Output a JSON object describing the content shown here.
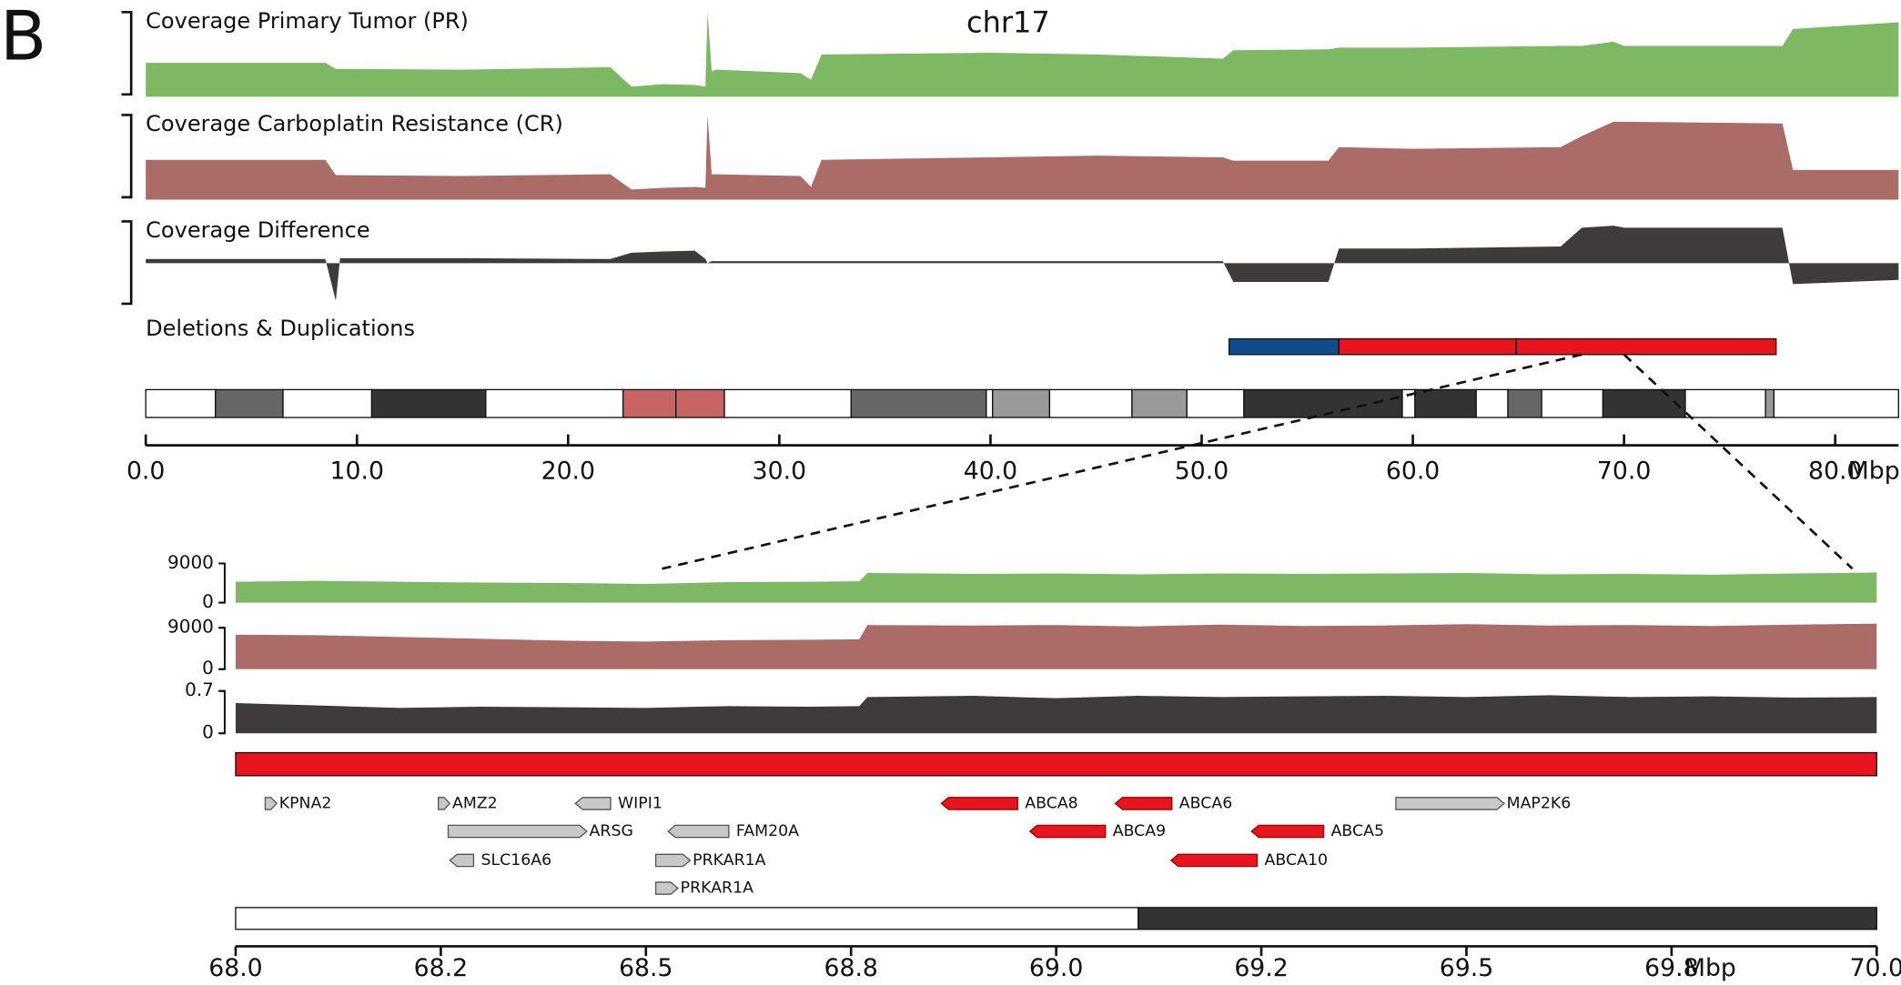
{
  "panel_label": "B",
  "chromosome": "chr17",
  "overview": {
    "x": [
      0,
      8.5,
      9,
      9.2,
      15,
      22,
      23,
      24.5,
      26,
      26.5,
      26.6,
      26.8,
      27,
      31,
      31.5,
      32,
      40,
      45,
      51,
      51.5,
      56,
      56.5,
      60,
      67,
      68,
      69.5,
      70,
      77.5,
      78,
      83
    ],
    "xlim": [
      0,
      83
    ],
    "xticks": [
      {
        "value": 0,
        "label": "0.0"
      },
      {
        "value": 10,
        "label": "10.0"
      },
      {
        "value": 20,
        "label": "20.0"
      },
      {
        "value": 30,
        "label": "30.0"
      },
      {
        "value": 40,
        "label": "40.0"
      },
      {
        "value": 50,
        "label": "50.0"
      },
      {
        "value": 60,
        "label": "60.0"
      },
      {
        "value": 70,
        "label": "70.0"
      },
      {
        "value": 80,
        "label": "80.0"
      }
    ],
    "unit": "Mbp",
    "tracks": [
      {
        "name": "Coverage Primary Tumor (PR)",
        "color": "#7db863",
        "ylim": [
          0,
          100
        ],
        "values": [
          40,
          40,
          33,
          33,
          32,
          35,
          12,
          15,
          14,
          12,
          100,
          30,
          32,
          28,
          20,
          50,
          52,
          50,
          45,
          55,
          56,
          58,
          58,
          60,
          60,
          65,
          60,
          60,
          80,
          88
        ]
      },
      {
        "name": "Coverage Carboplatin Resistance (CR)",
        "color": "#ab6b66",
        "ylim": [
          0,
          100
        ],
        "values": [
          47,
          47,
          29,
          29,
          28,
          30,
          12,
          14,
          15,
          14,
          100,
          30,
          30,
          28,
          15,
          47,
          50,
          52,
          50,
          46,
          46,
          62,
          60,
          62,
          75,
          92,
          92,
          90,
          35,
          35
        ]
      },
      {
        "name": "Coverage Difference",
        "color": "#403b3b",
        "ylim": [
          -1,
          1
        ],
        "values": [
          0.1,
          0.1,
          -0.9,
          0.12,
          0.12,
          0.1,
          0.25,
          0.28,
          0.3,
          0.1,
          0,
          0.05,
          0.05,
          0.05,
          0.05,
          0.05,
          0.05,
          0.05,
          0.05,
          -0.45,
          -0.45,
          0.35,
          0.35,
          0.4,
          0.85,
          0.9,
          0.85,
          0.85,
          -0.5,
          -0.4
        ]
      }
    ],
    "cnv_title": "Deletions & Duplications",
    "cnv": [
      {
        "start": 51.3,
        "end": 56.5,
        "color": "#0f4c8a"
      },
      {
        "start": 56.5,
        "end": 64.9,
        "color": "#e8141e"
      },
      {
        "start": 64.9,
        "end": 77.2,
        "color": "#e8141e"
      }
    ],
    "bands": [
      {
        "start": 0,
        "end": 3.3,
        "color": "#ffffff"
      },
      {
        "start": 3.3,
        "end": 6.5,
        "color": "#666666"
      },
      {
        "start": 6.5,
        "end": 10.7,
        "color": "#ffffff"
      },
      {
        "start": 10.7,
        "end": 16.1,
        "color": "#333333"
      },
      {
        "start": 16.1,
        "end": 22.6,
        "color": "#ffffff"
      },
      {
        "start": 22.6,
        "end": 25.1,
        "color": "#c86464"
      },
      {
        "start": 25.1,
        "end": 27.4,
        "color": "#c86464"
      },
      {
        "start": 27.4,
        "end": 33.4,
        "color": "#ffffff"
      },
      {
        "start": 33.4,
        "end": 39.8,
        "color": "#666666"
      },
      {
        "start": 39.8,
        "end": 40.1,
        "color": "#ffffff"
      },
      {
        "start": 40.1,
        "end": 42.8,
        "color": "#999999"
      },
      {
        "start": 42.8,
        "end": 46.7,
        "color": "#ffffff"
      },
      {
        "start": 46.7,
        "end": 49.3,
        "color": "#999999"
      },
      {
        "start": 49.3,
        "end": 52,
        "color": "#ffffff"
      },
      {
        "start": 52,
        "end": 59.5,
        "color": "#333333"
      },
      {
        "start": 59.5,
        "end": 60.1,
        "color": "#ffffff"
      },
      {
        "start": 60.1,
        "end": 63,
        "color": "#333333"
      },
      {
        "start": 63,
        "end": 64.5,
        "color": "#ffffff"
      },
      {
        "start": 64.5,
        "end": 66.1,
        "color": "#666666"
      },
      {
        "start": 66.1,
        "end": 69,
        "color": "#ffffff"
      },
      {
        "start": 69,
        "end": 72.9,
        "color": "#333333"
      },
      {
        "start": 72.9,
        "end": 76.7,
        "color": "#ffffff"
      },
      {
        "start": 76.7,
        "end": 77.1,
        "color": "#999999"
      },
      {
        "start": 77.1,
        "end": 83,
        "color": "#ffffff"
      }
    ],
    "zoom": [
      68,
      70
    ]
  },
  "detail": {
    "x": [
      68.0,
      68.1,
      68.2,
      68.3,
      68.4,
      68.5,
      68.6,
      68.7,
      68.76,
      68.77,
      68.9,
      69.0,
      69.1,
      69.2,
      69.3,
      69.4,
      69.5,
      69.6,
      69.7,
      69.8,
      69.9,
      70.0
    ],
    "xlim": [
      68,
      70
    ],
    "xticks": [
      {
        "value": 68,
        "label": "68.0"
      },
      {
        "value": 68.25,
        "label": "68.2"
      },
      {
        "value": 68.5,
        "label": "68.5"
      },
      {
        "value": 68.75,
        "label": "68.8"
      },
      {
        "value": 69,
        "label": "69.0"
      },
      {
        "value": 69.25,
        "label": "69.2"
      },
      {
        "value": 69.5,
        "label": "69.5"
      },
      {
        "value": 69.75,
        "label": "69.8"
      },
      {
        "value": 70,
        "label": "70.0"
      }
    ],
    "unit": "Mbp",
    "tracks": [
      {
        "color": "#7db863",
        "ylim": [
          0,
          10000
        ],
        "yticks": [
          0,
          9000
        ],
        "values": [
          4800,
          5000,
          4800,
          4600,
          4500,
          4300,
          4700,
          4800,
          4900,
          6800,
          6600,
          6700,
          6500,
          6700,
          6600,
          6700,
          6800,
          6500,
          6600,
          6400,
          6700,
          6900
        ]
      },
      {
        "color": "#ab6b66",
        "ylim": [
          0,
          10000
        ],
        "yticks": [
          0,
          9000
        ],
        "values": [
          7500,
          7400,
          7000,
          6600,
          6200,
          6000,
          6300,
          6400,
          6500,
          9600,
          9500,
          9600,
          9300,
          9700,
          9400,
          9500,
          9800,
          9500,
          9600,
          9400,
          9700,
          9900
        ]
      },
      {
        "color": "#403b3b",
        "ylim": [
          0,
          0.8
        ],
        "yticks": [
          0,
          0.7
        ],
        "values": [
          0.5,
          0.46,
          0.42,
          0.44,
          0.43,
          0.42,
          0.45,
          0.44,
          0.45,
          0.6,
          0.62,
          0.58,
          0.62,
          0.6,
          0.61,
          0.62,
          0.6,
          0.63,
          0.6,
          0.61,
          0.59,
          0.6
        ]
      }
    ],
    "cnv": [
      {
        "start": 68,
        "end": 70,
        "color": "#e8141e"
      }
    ],
    "gene_rows": [
      [
        {
          "name": "KPNA2",
          "start": 68.036,
          "end": 68.05,
          "strand": "+",
          "color": "#c8c8c8"
        },
        {
          "name": "AMZ2",
          "start": 68.247,
          "end": 68.261,
          "strand": "+",
          "color": "#c8c8c8"
        },
        {
          "name": "WIPI1",
          "start": 68.414,
          "end": 68.457,
          "strand": "-",
          "color": "#c8c8c8"
        },
        {
          "name": "ABCA8",
          "start": 68.86,
          "end": 68.953,
          "strand": "-",
          "color": "#e8141e"
        },
        {
          "name": "ABCA6",
          "start": 69.072,
          "end": 69.141,
          "strand": "-",
          "color": "#e8141e"
        },
        {
          "name": "MAP2K6",
          "start": 69.414,
          "end": 69.546,
          "strand": "+",
          "color": "#c8c8c8"
        }
      ],
      [
        {
          "name": "ARSG",
          "start": 68.259,
          "end": 68.428,
          "strand": "+",
          "color": "#c8c8c8"
        },
        {
          "name": "FAM20A",
          "start": 68.527,
          "end": 68.601,
          "strand": "-",
          "color": "#c8c8c8"
        },
        {
          "name": "ABCA9",
          "start": 68.968,
          "end": 69.06,
          "strand": "-",
          "color": "#e8141e"
        },
        {
          "name": "ABCA5",
          "start": 69.238,
          "end": 69.326,
          "strand": "-",
          "color": "#e8141e"
        }
      ],
      [
        {
          "name": "SLC16A6",
          "start": 68.261,
          "end": 68.29,
          "strand": "-",
          "color": "#c8c8c8"
        },
        {
          "name": "PRKAR1A",
          "start": 68.512,
          "end": 68.554,
          "strand": "+",
          "color": "#c8c8c8"
        },
        {
          "name": "ABCA10",
          "start": 69.14,
          "end": 69.245,
          "strand": "-",
          "color": "#e8141e"
        }
      ],
      [
        {
          "name": "PRKAR1A",
          "start": 68.512,
          "end": 68.539,
          "strand": "+",
          "color": "#c8c8c8"
        }
      ]
    ],
    "bands": [
      {
        "start": 68,
        "end": 69.1,
        "color": "#ffffff"
      },
      {
        "start": 69.1,
        "end": 70,
        "color": "#333333"
      }
    ]
  }
}
